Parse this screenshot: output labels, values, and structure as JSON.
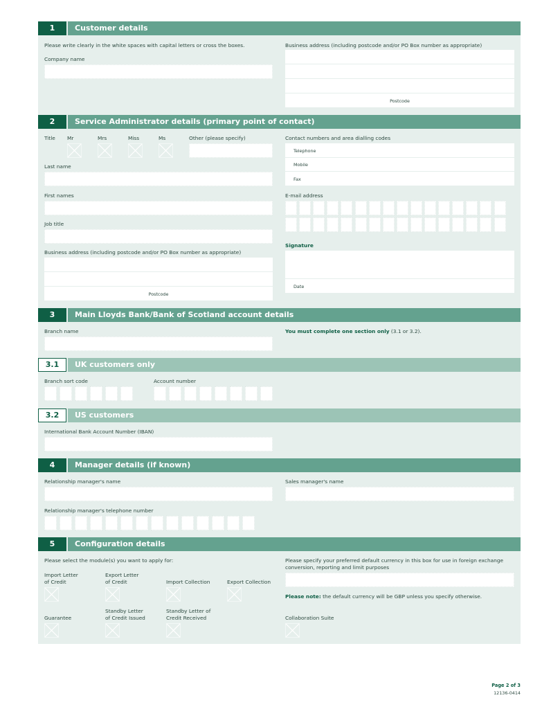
{
  "colors": {
    "dark": "#0f5f45",
    "header": "#64a28f",
    "subheader": "#9cc4b6",
    "panel": "#e6efec"
  },
  "s1": {
    "num": "1",
    "title": "Customer details",
    "instruction": "Please write clearly in the white spaces with capital letters or cross the boxes.",
    "company_name": "Company name",
    "business_address": "Business address (including postcode and/or PO Box number as appropriate)",
    "postcode": "Postcode"
  },
  "s2": {
    "num": "2",
    "title": "Service Administrator details (primary point of contact)",
    "title_label": "Title",
    "titles": [
      "Mr",
      "Mrs",
      "Miss",
      "Ms"
    ],
    "other": "Other (please specify)",
    "last_name": "Last name",
    "first_names": "First names",
    "job_title": "Job title",
    "business_address": "Business address (including postcode and/or PO Box number as appropriate)",
    "postcode": "Postcode",
    "contact": "Contact numbers and area dialling codes",
    "telephone": "Telephone",
    "mobile": "Mobile",
    "fax": "Fax",
    "email": "E-mail address",
    "signature": "Signature",
    "date": "Date"
  },
  "s3": {
    "num": "3",
    "title": "Main Lloyds Bank/Bank of Scotland account details",
    "branch_name": "Branch name",
    "must_bold": "You must complete one section only",
    "must_rest": " (3.1 or 3.2)."
  },
  "s31": {
    "num": "3.1",
    "title": "UK customers only",
    "sort_code": "Branch sort code",
    "account_number": "Account number"
  },
  "s32": {
    "num": "3.2",
    "title": "US customers",
    "iban": "International Bank Account Number (IBAN)"
  },
  "s4": {
    "num": "4",
    "title": "Manager details (if known)",
    "rm_name": "Relationship manager's name",
    "sales_name": "Sales manager's name",
    "rm_phone": "Relationship manager's telephone number"
  },
  "s5": {
    "num": "5",
    "title": "Configuration details",
    "select": "Please select the module(s) you want to apply for:",
    "modules": [
      [
        "Import Letter",
        "of Credit"
      ],
      [
        "Export Letter",
        "of Credit"
      ],
      [
        "",
        "Import Collection"
      ],
      [
        "",
        "Export Collection"
      ],
      [
        "",
        "Guarantee"
      ],
      [
        "Standby Letter",
        "of Credit Issued"
      ],
      [
        "Standby Letter of",
        "Credit Received"
      ],
      [
        "",
        "Collaboration Suite"
      ]
    ],
    "currency_1": "Please specify your preferred default currency in this box for use in foreign exchange",
    "currency_2": "conversion, reporting and limit purposes",
    "note_bold": "Please note:",
    "note_rest": " the default currency will be GBP unless you specify otherwise."
  },
  "footer": {
    "page": "Page 2 of 3",
    "code": "12136-0414"
  }
}
